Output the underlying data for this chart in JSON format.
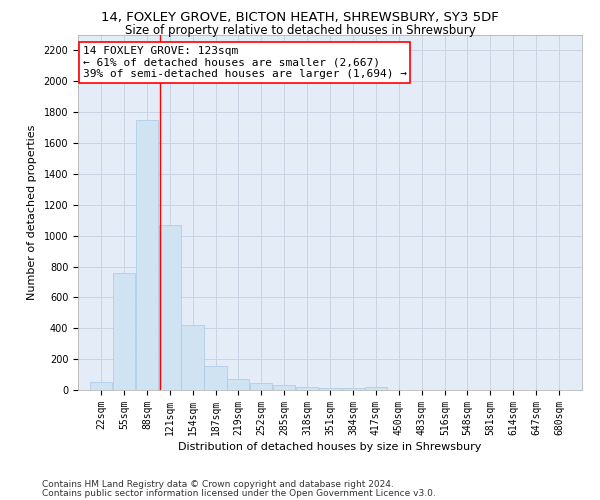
{
  "title_line1": "14, FOXLEY GROVE, BICTON HEATH, SHREWSBURY, SY3 5DF",
  "title_line2": "Size of property relative to detached houses in Shrewsbury",
  "xlabel": "Distribution of detached houses by size in Shrewsbury",
  "ylabel": "Number of detached properties",
  "bar_color": "#cfe3f3",
  "bar_edge_color": "#aac8e8",
  "grid_color": "#c8d4e4",
  "bg_color": "#e4ecf7",
  "annotation_line_color": "red",
  "annotation_box_color": "red",
  "annotation_text": "14 FOXLEY GROVE: 123sqm\n← 61% of detached houses are smaller (2,667)\n39% of semi-detached houses are larger (1,694) →",
  "property_size": 123,
  "bin_width": 33,
  "bin_starts": [
    22,
    55,
    88,
    121,
    154,
    187,
    219,
    252,
    285,
    318,
    351,
    384,
    417,
    450,
    483,
    516,
    548,
    581,
    614,
    647
  ],
  "bin_labels": [
    "22sqm",
    "55sqm",
    "88sqm",
    "121sqm",
    "154sqm",
    "187sqm",
    "219sqm",
    "252sqm",
    "285sqm",
    "318sqm",
    "351sqm",
    "384sqm",
    "417sqm",
    "450sqm",
    "483sqm",
    "516sqm",
    "548sqm",
    "581sqm",
    "614sqm",
    "647sqm",
    "680sqm"
  ],
  "bar_heights": [
    55,
    760,
    1750,
    1070,
    420,
    155,
    70,
    45,
    30,
    20,
    15,
    10,
    20,
    0,
    0,
    0,
    0,
    0,
    0,
    0
  ],
  "ylim": [
    0,
    2300
  ],
  "yticks": [
    0,
    200,
    400,
    600,
    800,
    1000,
    1200,
    1400,
    1600,
    1800,
    2000,
    2200
  ],
  "footnote_line1": "Contains HM Land Registry data © Crown copyright and database right 2024.",
  "footnote_line2": "Contains public sector information licensed under the Open Government Licence v3.0.",
  "title_fontsize": 9.5,
  "subtitle_fontsize": 8.5,
  "tick_fontsize": 7,
  "label_fontsize": 8,
  "annotation_fontsize": 8,
  "footnote_fontsize": 6.5
}
